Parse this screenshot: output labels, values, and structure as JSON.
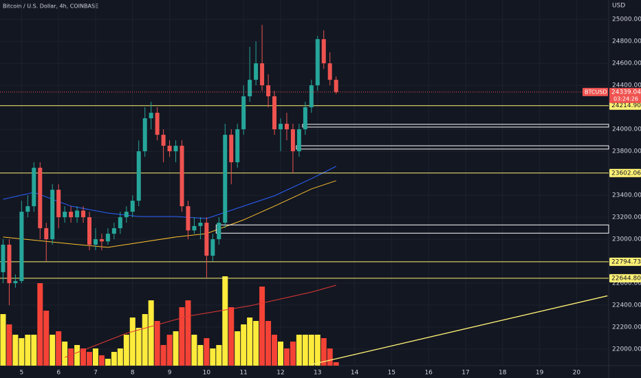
{
  "chart_data": {
    "type": "candlestick",
    "title": "Bitcoin / U.S. Dollar, 4h, COINBASE",
    "axis_label": "USD",
    "symbol": "BTCUSD",
    "countdown": "03:24:26",
    "up_color": "#26a69a",
    "down_color": "#ef5350",
    "vol_up_color": "#ffeb3b",
    "vol_down_color": "#f44336",
    "ylim": [
      21850,
      25176
    ],
    "yticks": [
      {
        "value": 22000,
        "label": "22000.00"
      },
      {
        "value": 22200,
        "label": "22200.00"
      },
      {
        "value": 22400,
        "label": "22400.00"
      },
      {
        "value": 22600,
        "label": "22600.00"
      },
      {
        "value": 23000,
        "label": "23000.00"
      },
      {
        "value": 23200,
        "label": "23200.00"
      },
      {
        "value": 23400,
        "label": "23400.00"
      },
      {
        "value": 23800,
        "label": "23800.00"
      },
      {
        "value": 24000,
        "label": "24000.00"
      },
      {
        "value": 24400,
        "label": "24400.00"
      },
      {
        "value": 24600,
        "label": "24600.00"
      },
      {
        "value": 24800,
        "label": "24800.00"
      },
      {
        "value": 25000,
        "label": "25000.00"
      }
    ],
    "xlim": [
      -0.5,
      98.2
    ],
    "xticks": [
      {
        "value": 3,
        "label": "5"
      },
      {
        "value": 9,
        "label": "6"
      },
      {
        "value": 15,
        "label": "7"
      },
      {
        "value": 21,
        "label": "8"
      },
      {
        "value": 27,
        "label": "9"
      },
      {
        "value": 33,
        "label": "10"
      },
      {
        "value": 39,
        "label": "11"
      },
      {
        "value": 45,
        "label": "12"
      },
      {
        "value": 51,
        "label": "13"
      },
      {
        "value": 57,
        "label": "14"
      },
      {
        "value": 63,
        "label": "15"
      },
      {
        "value": 69,
        "label": "16"
      },
      {
        "value": 75,
        "label": "17"
      },
      {
        "value": 81,
        "label": "18"
      },
      {
        "value": 87,
        "label": "19"
      },
      {
        "value": 93,
        "label": "20"
      }
    ],
    "open": [
      22700,
      22950,
      22600,
      22620,
      23250,
      23300,
      23650,
      23100,
      23000,
      23450,
      23200,
      23250,
      23200,
      23260,
      23200,
      22950,
      23000,
      22980,
      23050,
      23100,
      23200,
      23250,
      23350,
      23800,
      24100,
      24150,
      23950,
      23850,
      23800,
      23850,
      23300,
      23080,
      23120,
      23150,
      22850,
      23000,
      23150,
      23950,
      23700,
      24000,
      24300,
      24450,
      24600,
      24400,
      24300,
      24000,
      24050,
      24000,
      23800,
      24000,
      24200,
      24400,
      24820,
      24600,
      24450
    ],
    "high": [
      23000,
      23000,
      22680,
      23350,
      23400,
      23700,
      23700,
      23150,
      23500,
      23500,
      23300,
      23300,
      23300,
      23300,
      23250,
      23100,
      23050,
      23100,
      23150,
      23250,
      23300,
      23400,
      23900,
      24200,
      24250,
      24200,
      24000,
      23900,
      23900,
      23900,
      23350,
      23200,
      23200,
      23200,
      23050,
      23200,
      24050,
      24000,
      24050,
      24400,
      24750,
      24800,
      24950,
      24500,
      24350,
      24100,
      24150,
      24050,
      24050,
      24250,
      24450,
      24850,
      24900,
      24700,
      24480
    ],
    "low": [
      22600,
      22400,
      22560,
      22600,
      23200,
      23250,
      23000,
      22800,
      22950,
      23100,
      23150,
      23150,
      23150,
      23150,
      22900,
      22900,
      22900,
      22950,
      23000,
      23050,
      23150,
      23200,
      23300,
      23750,
      24000,
      23900,
      23700,
      23750,
      23700,
      23250,
      23000,
      23050,
      23000,
      22650,
      22800,
      22950,
      23100,
      23500,
      23650,
      23950,
      24250,
      24400,
      24350,
      24200,
      23950,
      23800,
      23900,
      23600,
      23750,
      23950,
      24150,
      24350,
      24550,
      24400,
      24320
    ],
    "close": [
      22950,
      22600,
      22620,
      23250,
      23300,
      23650,
      23100,
      23000,
      23450,
      23200,
      23250,
      23200,
      23260,
      23200,
      22950,
      23000,
      22980,
      23050,
      23100,
      23200,
      23250,
      23350,
      23800,
      24100,
      24150,
      23950,
      23850,
      23800,
      23850,
      23300,
      23080,
      23120,
      23150,
      22850,
      23000,
      23150,
      23950,
      23700,
      24000,
      24300,
      24450,
      24600,
      24400,
      24300,
      24000,
      24050,
      24000,
      23800,
      24000,
      24200,
      24400,
      24820,
      24600,
      24450,
      24339.04
    ],
    "close_label": "24339.04",
    "volume": [
      75,
      60,
      45,
      40,
      45,
      45,
      120,
      80,
      45,
      50,
      35,
      25,
      30,
      25,
      20,
      25,
      15,
      10,
      20,
      25,
      45,
      70,
      55,
      75,
      95,
      65,
      30,
      45,
      50,
      85,
      95,
      45,
      30,
      40,
      25,
      30,
      130,
      85,
      50,
      60,
      70,
      65,
      115,
      65,
      45,
      35,
      25,
      35,
      45,
      45,
      45,
      45,
      40,
      25,
      5
    ],
    "vlim": [
      0,
      140
    ],
    "moving_averages": [
      {
        "color": "#2962ff",
        "x": [
          0,
          5,
          11,
          17,
          22,
          28,
          33,
          39,
          44,
          50,
          54
        ],
        "values": [
          23363,
          23426,
          23301,
          23238,
          23207,
          23207,
          23188,
          23301,
          23395,
          23551,
          23663
        ]
      },
      {
        "color": "#fbc02d",
        "x": [
          0,
          11,
          17,
          28,
          33,
          39,
          44,
          50,
          54
        ],
        "values": [
          23020,
          22957,
          22926,
          23020,
          23051,
          23176,
          23301,
          23457,
          23532
        ]
      }
    ],
    "volume_ma": {
      "color": "#e53935",
      "x": [
        10,
        20,
        30,
        40,
        50,
        54
      ],
      "values": [
        12,
        47,
        72,
        87,
        107,
        117
      ]
    },
    "levels": [
      {
        "value": 24214.9,
        "label": "24214.90"
      },
      {
        "value": 23602.06,
        "label": "23602.06"
      },
      {
        "value": 22794.73,
        "label": "22794.73"
      },
      {
        "value": 22644.8,
        "label": "22644.80"
      }
    ],
    "level_color": "#fff176",
    "zones": [
      {
        "start": 49,
        "top": 24045,
        "bottom": 24020
      },
      {
        "start": 48,
        "top": 23850,
        "bottom": 23820
      },
      {
        "start": 35,
        "top": 23130,
        "bottom": 23055
      }
    ],
    "trendline": {
      "x": [
        50,
        98
      ],
      "y": [
        21860,
        22485
      ]
    }
  }
}
